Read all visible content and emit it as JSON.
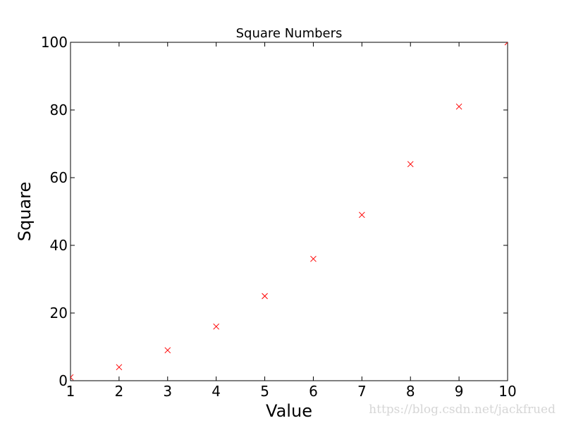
{
  "chart_data": {
    "type": "scatter",
    "title": "Square Numbers",
    "xlabel": "Value",
    "ylabel": "Square",
    "x": [
      1,
      2,
      3,
      4,
      5,
      6,
      7,
      8,
      9,
      10
    ],
    "y": [
      1,
      4,
      9,
      16,
      25,
      36,
      49,
      64,
      81,
      100
    ],
    "xlim": [
      1,
      10
    ],
    "ylim": [
      0,
      100
    ],
    "xticks": [
      "1",
      "2",
      "3",
      "4",
      "5",
      "6",
      "7",
      "8",
      "9",
      "10"
    ],
    "yticks": [
      "0",
      "20",
      "40",
      "60",
      "80",
      "100"
    ],
    "marker": "x",
    "marker_color": "#ff0000",
    "grid": false,
    "legend": "none"
  },
  "watermark": "https://blog.csdn.net/jackfrued"
}
